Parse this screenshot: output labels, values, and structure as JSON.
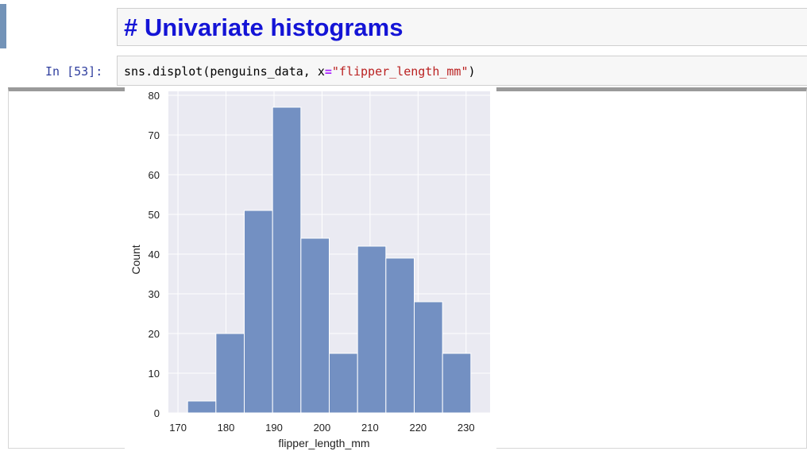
{
  "markdown_cell": {
    "text": "# Univariate histograms"
  },
  "code_cell": {
    "prompt": "In [53]:",
    "code_fn": "sns.displot(penguins_data, x",
    "code_op": "=",
    "code_str": "\"flipper_length_mm\"",
    "code_end": ")"
  },
  "colors": {
    "bar_fill": "#7390c2",
    "plot_bg": "#eaeaf2",
    "heading_blue": "#1414d6"
  },
  "chart_data": {
    "type": "bar",
    "title": "",
    "xlabel": "flipper_length_mm",
    "ylabel": "Count",
    "xlim": [
      168,
      235
    ],
    "ylim": [
      0,
      81
    ],
    "grid": true,
    "xticks": [
      170,
      180,
      190,
      200,
      210,
      220,
      230
    ],
    "yticks": [
      0,
      10,
      20,
      30,
      40,
      50,
      60,
      70,
      80
    ],
    "bin_edges": [
      172,
      177.9,
      183.8,
      189.7,
      195.6,
      201.5,
      207.4,
      213.3,
      219.2,
      225.1,
      231
    ],
    "values": [
      3,
      20,
      51,
      77,
      44,
      15,
      42,
      39,
      28,
      15
    ]
  }
}
